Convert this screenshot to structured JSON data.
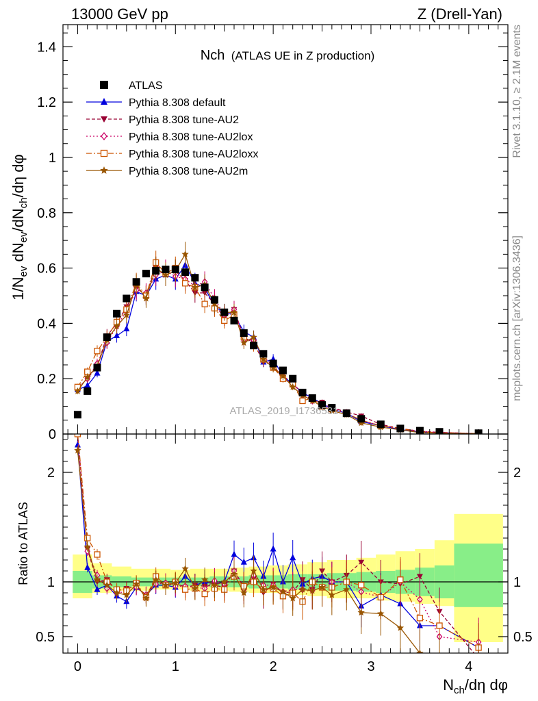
{
  "header": {
    "left": "13000 GeV pp",
    "right": "Z (Drell-Yan)"
  },
  "side_text": {
    "rivet": "Rivet 3.1.10, ≥ 2.1M events",
    "mcplots": "mcplots.cern.ch [arXiv:1306.3436]"
  },
  "watermark": "ATLAS_2019_I1736531",
  "chart_data": [
    {
      "type": "line",
      "title_main": "Nch",
      "title_sub": "(ATLAS UE in Z production)",
      "ylabel": "1/N_ev dN_ev/dN_ch/dη dφ",
      "xlim": [
        -0.15,
        4.4
      ],
      "ylim": [
        0,
        1.48
      ],
      "yticks": [
        0,
        0.2,
        0.4,
        0.6,
        0.8,
        1,
        1.2,
        1.4
      ],
      "ytick_labels": [
        "0",
        "0.2",
        "0.4",
        "0.6",
        "0.8",
        "1",
        "1.2",
        "1.4"
      ],
      "legend_position": "top-left",
      "x": [
        0,
        0.1,
        0.2,
        0.3,
        0.4,
        0.5,
        0.6,
        0.7,
        0.8,
        0.9,
        1.0,
        1.1,
        1.2,
        1.3,
        1.4,
        1.5,
        1.6,
        1.7,
        1.8,
        1.9,
        2.0,
        2.1,
        2.2,
        2.3,
        2.4,
        2.5,
        2.6,
        2.75,
        2.9,
        3.1,
        3.3,
        3.5,
        3.7,
        4.1
      ],
      "series": [
        {
          "name": "ATLAS",
          "color": "#000000",
          "marker": "square",
          "dash": "",
          "values": [
            0.07,
            0.155,
            0.24,
            0.35,
            0.435,
            0.49,
            0.55,
            0.58,
            0.59,
            0.595,
            0.595,
            0.585,
            0.565,
            0.53,
            0.485,
            0.44,
            0.41,
            0.365,
            0.32,
            0.29,
            0.255,
            0.23,
            0.2,
            0.15,
            0.13,
            0.105,
            0.095,
            0.075,
            0.055,
            0.035,
            0.02,
            0.012,
            0.008,
            0.003
          ]
        },
        {
          "name": "Pythia 8.308 default",
          "color": "#0000dd",
          "marker": "triangle",
          "dash": "",
          "values": [
            0.16,
            0.175,
            0.22,
            0.335,
            0.355,
            0.38,
            0.515,
            0.5,
            0.56,
            0.575,
            0.56,
            0.61,
            0.545,
            0.53,
            0.46,
            0.44,
            0.43,
            0.37,
            0.35,
            0.26,
            0.27,
            0.21,
            0.18,
            0.15,
            0.13,
            0.11,
            0.09,
            0.075,
            0.045,
            0.03,
            0.016,
            0.007,
            0.005,
            0.0012
          ]
        },
        {
          "name": "Pythia 8.308 tune-AU2",
          "color": "#990033",
          "marker": "triangle-down",
          "dash": "5,3",
          "values": [
            0.165,
            0.2,
            0.245,
            0.355,
            0.4,
            0.46,
            0.525,
            0.505,
            0.6,
            0.575,
            0.59,
            0.555,
            0.51,
            0.51,
            0.47,
            0.42,
            0.45,
            0.35,
            0.33,
            0.26,
            0.25,
            0.2,
            0.18,
            0.15,
            0.12,
            0.115,
            0.095,
            0.08,
            0.065,
            0.035,
            0.02,
            0.01,
            0.006,
            0.0014
          ]
        },
        {
          "name": "Pythia 8.308 tune-AU2lox",
          "color": "#cc0066",
          "marker": "diamond",
          "dash": "2,3",
          "values": [
            0.165,
            0.2,
            0.255,
            0.33,
            0.39,
            0.445,
            0.52,
            0.51,
            0.575,
            0.59,
            0.57,
            0.56,
            0.535,
            0.55,
            0.49,
            0.43,
            0.45,
            0.34,
            0.34,
            0.28,
            0.245,
            0.21,
            0.185,
            0.14,
            0.12,
            0.1,
            0.095,
            0.075,
            0.05,
            0.03,
            0.02,
            0.01,
            0.006,
            0.0014
          ]
        },
        {
          "name": "Pythia 8.308 tune-AU2loxx",
          "color": "#cc5500",
          "marker": "square-open",
          "dash": "8,3,2,3",
          "values": [
            0.17,
            0.225,
            0.3,
            0.35,
            0.405,
            0.45,
            0.545,
            0.5,
            0.62,
            0.58,
            0.6,
            0.545,
            0.53,
            0.47,
            0.455,
            0.41,
            0.43,
            0.35,
            0.32,
            0.27,
            0.24,
            0.2,
            0.18,
            0.12,
            0.13,
            0.1,
            0.09,
            0.075,
            0.05,
            0.03,
            0.02,
            0.008,
            0.005,
            0.0012
          ]
        },
        {
          "name": "Pythia 8.308 tune-AU2m",
          "color": "#995500",
          "marker": "star",
          "dash": "",
          "values": [
            0.155,
            0.205,
            0.245,
            0.34,
            0.39,
            0.43,
            0.54,
            0.49,
            0.6,
            0.575,
            0.59,
            0.65,
            0.53,
            0.54,
            0.47,
            0.44,
            0.44,
            0.33,
            0.35,
            0.27,
            0.24,
            0.21,
            0.17,
            0.14,
            0.12,
            0.1,
            0.085,
            0.07,
            0.04,
            0.025,
            0.015,
            0.005,
            0.003,
            0.0008
          ]
        }
      ]
    },
    {
      "type": "line",
      "ylabel": "Ratio to ATLAS",
      "xlabel": "N_ch/dη dφ",
      "xlim": [
        -0.15,
        4.4
      ],
      "ylim": [
        0.35,
        2.35
      ],
      "yticks": [
        0.5,
        1,
        2
      ],
      "ytick_labels": [
        "0.5",
        "1",
        "2"
      ],
      "xticks": [
        0,
        1,
        2,
        3,
        4
      ],
      "xtick_labels": [
        "0",
        "1",
        "2",
        "3",
        "4"
      ],
      "reference_line": 1,
      "band_edges": [
        -0.05,
        0.15,
        0.35,
        0.55,
        0.75,
        0.95,
        1.15,
        1.35,
        1.55,
        1.75,
        1.95,
        2.15,
        2.35,
        2.55,
        2.85,
        3.05,
        3.25,
        3.45,
        3.65,
        3.85,
        4.35
      ],
      "band_inner": [
        [
          0.9,
          1.1
        ],
        [
          0.94,
          1.06
        ],
        [
          0.95,
          1.05
        ],
        [
          0.96,
          1.04
        ],
        [
          0.96,
          1.04
        ],
        [
          0.96,
          1.04
        ],
        [
          0.96,
          1.04
        ],
        [
          0.95,
          1.05
        ],
        [
          0.95,
          1.05
        ],
        [
          0.94,
          1.06
        ],
        [
          0.94,
          1.06
        ],
        [
          0.93,
          1.07
        ],
        [
          0.93,
          1.07
        ],
        [
          0.92,
          1.08
        ],
        [
          0.91,
          1.09
        ],
        [
          0.9,
          1.1
        ],
        [
          0.89,
          1.11
        ],
        [
          0.87,
          1.13
        ],
        [
          0.85,
          1.15
        ],
        [
          0.77,
          1.35
        ]
      ],
      "band_outer": [
        [
          0.85,
          1.25
        ],
        [
          0.9,
          1.17
        ],
        [
          0.92,
          1.14
        ],
        [
          0.92,
          1.12
        ],
        [
          0.93,
          1.12
        ],
        [
          0.93,
          1.11
        ],
        [
          0.92,
          1.12
        ],
        [
          0.92,
          1.12
        ],
        [
          0.91,
          1.13
        ],
        [
          0.9,
          1.14
        ],
        [
          0.9,
          1.15
        ],
        [
          0.88,
          1.16
        ],
        [
          0.87,
          1.18
        ],
        [
          0.85,
          1.2
        ],
        [
          0.85,
          1.22
        ],
        [
          0.83,
          1.25
        ],
        [
          0.82,
          1.28
        ],
        [
          0.8,
          1.3
        ],
        [
          0.78,
          1.38
        ],
        [
          0.45,
          1.62
        ]
      ],
      "series": [
        {
          "name": "Pythia 8.308 default",
          "color": "#0000dd",
          "marker": "triangle",
          "dash": "",
          "values": [
            2.25,
            1.13,
            0.93,
            0.97,
            0.87,
            0.82,
            0.95,
            0.88,
            0.97,
            0.97,
            0.95,
            1.05,
            0.97,
            1.0,
            0.98,
            1.0,
            1.25,
            1.18,
            1.22,
            1.05,
            1.3,
            1.0,
            1.22,
            0.98,
            1.03,
            1.05,
            1.0,
            1.0,
            0.78,
            0.88,
            0.8,
            0.6,
            0.6,
            0.4
          ]
        },
        {
          "name": "Pythia 8.308 tune-AU2",
          "color": "#990033",
          "marker": "triangle-down",
          "dash": "5,3",
          "values": [
            2.35,
            1.3,
            1.0,
            1.02,
            0.92,
            0.94,
            0.96,
            0.88,
            1.02,
            0.97,
            0.99,
            0.95,
            0.97,
            0.96,
            0.97,
            0.95,
            1.1,
            0.96,
            1.03,
            0.9,
            0.98,
            0.9,
            0.91,
            1.02,
            0.93,
            1.1,
            1.0,
            1.06,
            1.18,
            1.0,
            0.98,
            1.05,
            0.73,
            0.3
          ]
        },
        {
          "name": "Pythia 8.308 tune-AU2lox",
          "color": "#cc0066",
          "marker": "diamond",
          "dash": "2,3",
          "values": [
            2.35,
            1.28,
            1.06,
            0.94,
            0.9,
            0.91,
            0.95,
            0.88,
            0.98,
            0.99,
            0.96,
            0.96,
            0.95,
            0.94,
            1.01,
            0.98,
            1.1,
            0.93,
            1.06,
            0.97,
            0.97,
            0.91,
            0.93,
            0.93,
            0.92,
            0.95,
            1.0,
            1.0,
            0.91,
            0.86,
            1.0,
            0.84,
            0.5,
            0.45
          ]
        },
        {
          "name": "Pythia 8.308 tune-AU2loxx",
          "color": "#cc5500",
          "marker": "square-open",
          "dash": "8,3,2,3",
          "values": [
            2.35,
            1.4,
            1.25,
            1.0,
            0.93,
            0.92,
            0.99,
            0.86,
            1.05,
            0.97,
            1.0,
            0.93,
            0.94,
            0.89,
            0.94,
            0.93,
            1.05,
            0.96,
            1.0,
            0.93,
            0.94,
            0.87,
            0.9,
            0.82,
            1.0,
            0.95,
            0.95,
            1.0,
            0.97,
            0.86,
            1.02,
            0.67,
            0.6,
            0.4
          ]
        },
        {
          "name": "Pythia 8.308 tune-AU2m",
          "color": "#995500",
          "marker": "star",
          "dash": "",
          "values": [
            2.2,
            1.32,
            1.02,
            0.97,
            0.9,
            0.88,
            0.98,
            0.85,
            1.02,
            0.97,
            0.99,
            1.12,
            0.94,
            1.02,
            0.97,
            1.0,
            1.07,
            0.9,
            1.1,
            0.93,
            0.95,
            0.91,
            0.85,
            0.93,
            0.92,
            0.95,
            0.88,
            0.93,
            0.72,
            0.71,
            0.58,
            0.35,
            0.3,
            0.25
          ]
        }
      ]
    }
  ]
}
